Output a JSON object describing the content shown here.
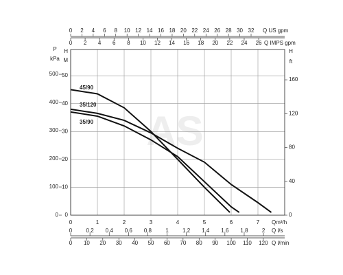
{
  "chart_data": {
    "type": "line",
    "watermark": "AS",
    "xlabel": "Qm³/h",
    "xlim": [
      0,
      8
    ],
    "xticks": [
      0,
      1,
      2,
      3,
      4,
      5,
      6,
      7
    ],
    "ylabel": "H",
    "ylabel_unit": "M",
    "ylim": [
      0,
      59.4
    ],
    "yticks": [
      0,
      10,
      20,
      30,
      40,
      50
    ],
    "grid": true,
    "series": [
      {
        "name": "45/90",
        "color": "#111111",
        "x": [
          0,
          1,
          2,
          3,
          4,
          5,
          5.95
        ],
        "values": [
          45,
          43.5,
          38.5,
          30,
          20,
          10,
          1
        ]
      },
      {
        "name": "35/120",
        "color": "#111111",
        "x": [
          0,
          1,
          2,
          3,
          4,
          5,
          6,
          7,
          7.5
        ],
        "values": [
          38,
          36.5,
          34,
          29.5,
          24,
          19,
          11,
          4.5,
          1
        ]
      },
      {
        "name": "35/90",
        "color": "#111111",
        "x": [
          0,
          1,
          2,
          3,
          4,
          5,
          6,
          6.3
        ],
        "values": [
          37,
          35.5,
          32,
          27,
          21,
          12,
          3,
          1
        ]
      }
    ],
    "left_axis": {
      "label": "P",
      "unit": "kPa",
      "lim": [
        0,
        588
      ],
      "ticks": [
        0,
        100,
        200,
        300,
        400,
        500
      ]
    },
    "right_axis": {
      "label": "H",
      "unit": "ft",
      "lim": [
        0,
        195.8
      ],
      "ticks": [
        0,
        40,
        80,
        120,
        160
      ]
    },
    "top_axes": [
      {
        "label": "Q US gpm",
        "lim": [
          0,
          37.96
        ],
        "ticks": [
          0,
          2,
          4,
          6,
          8,
          10,
          12,
          14,
          16,
          18,
          20,
          22,
          24,
          26,
          28,
          30,
          32
        ]
      },
      {
        "label": "Q IMPS gpm",
        "lim": [
          0,
          29.6
        ],
        "ticks": [
          0,
          2,
          4,
          6,
          8,
          10,
          12,
          14,
          16,
          18,
          20,
          22,
          24,
          26
        ]
      }
    ],
    "bottom_axes": [
      {
        "label": "Q l/s",
        "lim": [
          0,
          2.22
        ],
        "ticks": [
          0,
          {
            "value": 0.2,
            "label": "0,2"
          },
          {
            "value": 0.4,
            "label": "0,4"
          },
          {
            "value": 0.6,
            "label": "0,6"
          },
          {
            "value": 0.8,
            "label": "0,8"
          },
          1,
          {
            "value": 1.2,
            "label": "1,2"
          },
          {
            "value": 1.4,
            "label": "1,4"
          },
          {
            "value": 1.6,
            "label": "1,6"
          },
          {
            "value": 1.8,
            "label": "1,8"
          },
          2
        ]
      },
      {
        "label": "Q l/min",
        "lim": [
          0,
          133.3
        ],
        "ticks": [
          0,
          10,
          20,
          30,
          40,
          50,
          60,
          70,
          80,
          90,
          100,
          110,
          120
        ]
      }
    ]
  }
}
